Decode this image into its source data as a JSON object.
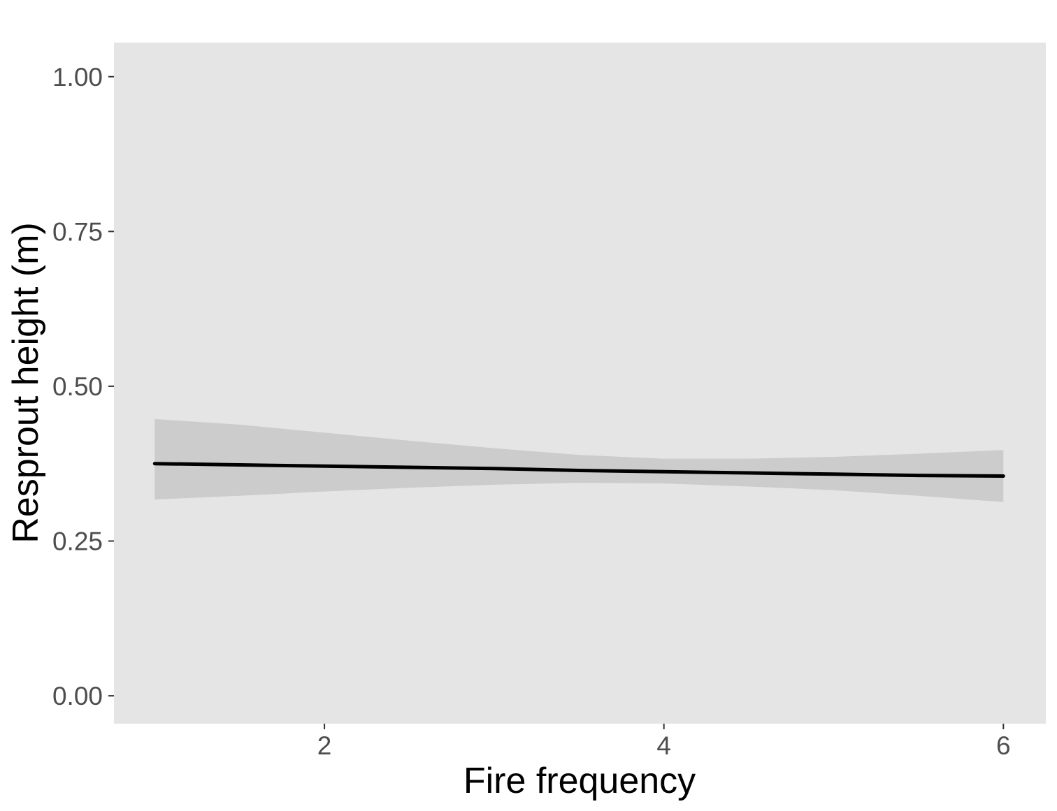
{
  "chart_data": {
    "type": "line",
    "title": "",
    "xlabel": "Fire frequency",
    "ylabel": "Resprout height (m)",
    "xlim": [
      0.76,
      6.25
    ],
    "ylim": [
      -0.045,
      1.055
    ],
    "x_ticks": [
      2,
      4,
      6
    ],
    "x_tick_labels": [
      "2",
      "4",
      "6"
    ],
    "y_ticks": [
      0,
      0.25,
      0.5,
      0.75,
      1.0
    ],
    "y_tick_labels": [
      "0.00",
      "0.25",
      "0.50",
      "0.75",
      "1.00"
    ],
    "grid": false,
    "legend": "none",
    "series": [
      {
        "x": [
          1,
          1.5,
          2,
          2.5,
          3,
          3.5,
          4,
          4.5,
          5,
          5.5,
          6
        ],
        "y": [
          0.375,
          0.373,
          0.371,
          0.369,
          0.367,
          0.364,
          0.362,
          0.36,
          0.358,
          0.356,
          0.355
        ],
        "ci_lower": [
          0.317,
          0.323,
          0.33,
          0.336,
          0.341,
          0.344,
          0.343,
          0.338,
          0.332,
          0.323,
          0.313
        ],
        "ci_upper": [
          0.447,
          0.438,
          0.425,
          0.412,
          0.4,
          0.389,
          0.383,
          0.383,
          0.386,
          0.391,
          0.397
        ]
      }
    ],
    "colors": {
      "panel": "#e5e5e5",
      "ribbon": "#cccccc",
      "line": "#000000",
      "tick_text": "#4d4d4d",
      "axis_title": "#000000"
    }
  }
}
